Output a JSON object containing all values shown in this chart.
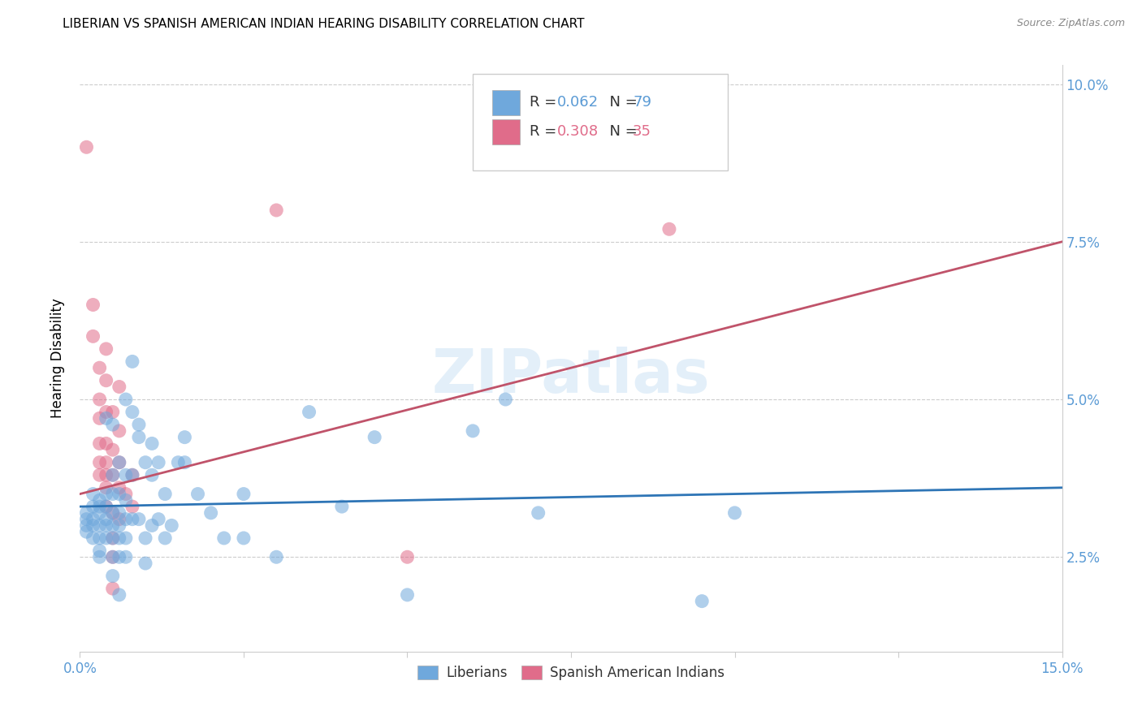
{
  "title": "LIBERIAN VS SPANISH AMERICAN INDIAN HEARING DISABILITY CORRELATION CHART",
  "source": "Source: ZipAtlas.com",
  "ylabel": "Hearing Disability",
  "watermark": "ZIPatlas",
  "xmin": 0.0,
  "xmax": 0.15,
  "ymin": 0.01,
  "ymax": 0.103,
  "yticks": [
    0.025,
    0.05,
    0.075,
    0.1
  ],
  "ytick_labels": [
    "2.5%",
    "5.0%",
    "7.5%",
    "10.0%"
  ],
  "xticks": [
    0.0,
    0.025,
    0.05,
    0.075,
    0.1,
    0.125,
    0.15
  ],
  "legend_blue_r": "0.062",
  "legend_blue_n": "79",
  "legend_pink_r": "0.308",
  "legend_pink_n": "35",
  "blue_color": "#6fa8dc",
  "pink_color": "#e06c8a",
  "blue_line_color": "#2e75b6",
  "pink_line_color": "#c0536a",
  "blue_scatter": [
    [
      0.001,
      0.032
    ],
    [
      0.001,
      0.031
    ],
    [
      0.001,
      0.03
    ],
    [
      0.001,
      0.029
    ],
    [
      0.002,
      0.033
    ],
    [
      0.002,
      0.031
    ],
    [
      0.002,
      0.03
    ],
    [
      0.002,
      0.028
    ],
    [
      0.002,
      0.035
    ],
    [
      0.003,
      0.034
    ],
    [
      0.003,
      0.033
    ],
    [
      0.003,
      0.032
    ],
    [
      0.003,
      0.03
    ],
    [
      0.003,
      0.028
    ],
    [
      0.003,
      0.026
    ],
    [
      0.003,
      0.025
    ],
    [
      0.004,
      0.047
    ],
    [
      0.004,
      0.035
    ],
    [
      0.004,
      0.033
    ],
    [
      0.004,
      0.031
    ],
    [
      0.004,
      0.03
    ],
    [
      0.004,
      0.028
    ],
    [
      0.005,
      0.046
    ],
    [
      0.005,
      0.038
    ],
    [
      0.005,
      0.035
    ],
    [
      0.005,
      0.032
    ],
    [
      0.005,
      0.03
    ],
    [
      0.005,
      0.028
    ],
    [
      0.005,
      0.025
    ],
    [
      0.005,
      0.022
    ],
    [
      0.006,
      0.04
    ],
    [
      0.006,
      0.035
    ],
    [
      0.006,
      0.032
    ],
    [
      0.006,
      0.03
    ],
    [
      0.006,
      0.028
    ],
    [
      0.006,
      0.025
    ],
    [
      0.006,
      0.019
    ],
    [
      0.007,
      0.05
    ],
    [
      0.007,
      0.038
    ],
    [
      0.007,
      0.034
    ],
    [
      0.007,
      0.031
    ],
    [
      0.007,
      0.028
    ],
    [
      0.007,
      0.025
    ],
    [
      0.008,
      0.056
    ],
    [
      0.008,
      0.048
    ],
    [
      0.008,
      0.038
    ],
    [
      0.008,
      0.031
    ],
    [
      0.009,
      0.046
    ],
    [
      0.009,
      0.044
    ],
    [
      0.009,
      0.031
    ],
    [
      0.01,
      0.04
    ],
    [
      0.01,
      0.028
    ],
    [
      0.01,
      0.024
    ],
    [
      0.011,
      0.043
    ],
    [
      0.011,
      0.038
    ],
    [
      0.011,
      0.03
    ],
    [
      0.012,
      0.04
    ],
    [
      0.012,
      0.031
    ],
    [
      0.013,
      0.035
    ],
    [
      0.013,
      0.028
    ],
    [
      0.014,
      0.03
    ],
    [
      0.015,
      0.04
    ],
    [
      0.016,
      0.044
    ],
    [
      0.016,
      0.04
    ],
    [
      0.018,
      0.035
    ],
    [
      0.02,
      0.032
    ],
    [
      0.022,
      0.028
    ],
    [
      0.025,
      0.035
    ],
    [
      0.025,
      0.028
    ],
    [
      0.03,
      0.025
    ],
    [
      0.035,
      0.048
    ],
    [
      0.04,
      0.033
    ],
    [
      0.045,
      0.044
    ],
    [
      0.05,
      0.019
    ],
    [
      0.06,
      0.045
    ],
    [
      0.065,
      0.05
    ],
    [
      0.07,
      0.032
    ],
    [
      0.095,
      0.018
    ],
    [
      0.1,
      0.032
    ]
  ],
  "pink_scatter": [
    [
      0.001,
      0.09
    ],
    [
      0.002,
      0.065
    ],
    [
      0.002,
      0.06
    ],
    [
      0.003,
      0.055
    ],
    [
      0.003,
      0.05
    ],
    [
      0.003,
      0.047
    ],
    [
      0.003,
      0.043
    ],
    [
      0.003,
      0.04
    ],
    [
      0.003,
      0.038
    ],
    [
      0.004,
      0.058
    ],
    [
      0.004,
      0.053
    ],
    [
      0.004,
      0.048
    ],
    [
      0.004,
      0.043
    ],
    [
      0.004,
      0.04
    ],
    [
      0.004,
      0.038
    ],
    [
      0.004,
      0.036
    ],
    [
      0.004,
      0.033
    ],
    [
      0.005,
      0.048
    ],
    [
      0.005,
      0.042
    ],
    [
      0.005,
      0.038
    ],
    [
      0.005,
      0.032
    ],
    [
      0.005,
      0.028
    ],
    [
      0.005,
      0.025
    ],
    [
      0.005,
      0.02
    ],
    [
      0.006,
      0.052
    ],
    [
      0.006,
      0.045
    ],
    [
      0.006,
      0.04
    ],
    [
      0.006,
      0.036
    ],
    [
      0.006,
      0.031
    ],
    [
      0.007,
      0.035
    ],
    [
      0.008,
      0.038
    ],
    [
      0.008,
      0.033
    ],
    [
      0.03,
      0.08
    ],
    [
      0.05,
      0.025
    ],
    [
      0.09,
      0.077
    ]
  ],
  "blue_line": [
    [
      0.0,
      0.033
    ],
    [
      0.15,
      0.036
    ]
  ],
  "pink_line": [
    [
      0.0,
      0.035
    ],
    [
      0.15,
      0.075
    ]
  ]
}
